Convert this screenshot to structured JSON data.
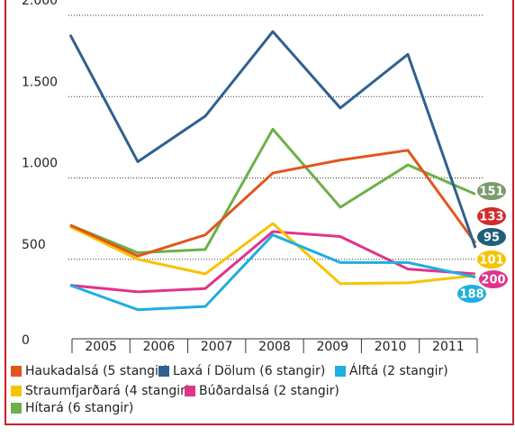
{
  "chart_data": {
    "type": "line",
    "categories": [
      "2005",
      "2006",
      "2007",
      "2008",
      "2009",
      "2010",
      "2011"
    ],
    "ylim": [
      0,
      2000
    ],
    "yticks": [
      0,
      {
        "value": 500,
        "label": "500"
      },
      {
        "value": 1000,
        "label": "1.000"
      },
      {
        "value": 1500,
        "label": "1.500"
      },
      {
        "value": 2000,
        "label": "2.000"
      }
    ],
    "grid": true,
    "series": [
      {
        "name": "Haukadalsá (5 stangir)",
        "color": "#e0561c",
        "values": [
          710,
          520,
          650,
          1030,
          1110,
          1170,
          600
        ],
        "badge": 133,
        "badge_color": "#d42a2a"
      },
      {
        "name": "Laxá í Dölum (6 stangir)",
        "color": "#2f6090",
        "values": [
          1880,
          1100,
          1380,
          1900,
          1430,
          1760,
          570
        ],
        "badge": 95,
        "badge_color": "#1f5f7a"
      },
      {
        "name": "Álftá (2 stangir)",
        "color": "#1eaee0",
        "values": [
          340,
          190,
          210,
          650,
          480,
          480,
          390
        ],
        "badge": 188,
        "badge_color": "#1eaee0"
      },
      {
        "name": "Straumfjarðará (4 stangir)",
        "color": "#f5c400",
        "values": [
          700,
          500,
          410,
          720,
          350,
          355,
          400
        ],
        "badge": 101,
        "badge_color": "#f5c400"
      },
      {
        "name": "Búðardalsá (2 stangir)",
        "color": "#e0338a",
        "values": [
          340,
          300,
          320,
          670,
          640,
          440,
          410
        ],
        "badge": 200,
        "badge_color": "#e0338a"
      },
      {
        "name": "Hítará (6 stangir)",
        "color": "#6db04a",
        "values": [
          710,
          540,
          560,
          1300,
          820,
          1080,
          900
        ],
        "badge": 151,
        "badge_color": "#7c9a6c"
      }
    ]
  }
}
